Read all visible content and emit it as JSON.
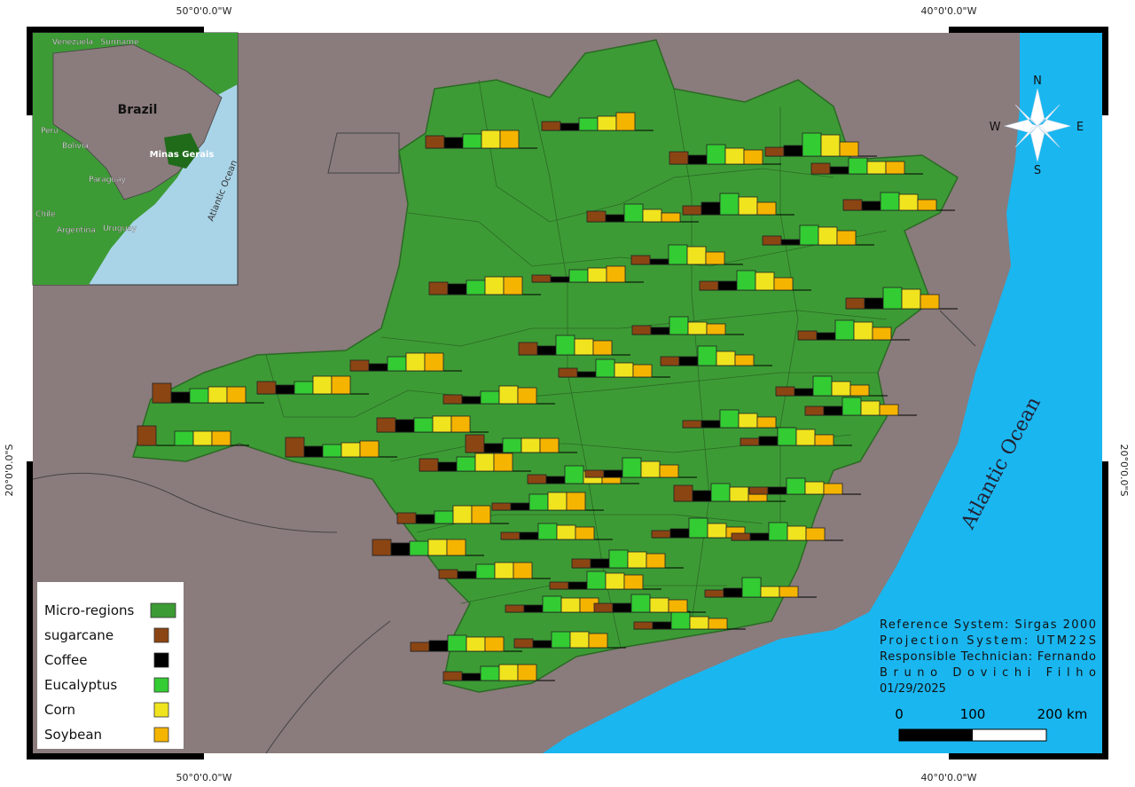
{
  "graticule": {
    "lon_labels": [
      "50°0'0.0\"W",
      "40°0'0.0\"W"
    ],
    "lat_labels": [
      "20°0'0.0\"S"
    ]
  },
  "inset": {
    "labels": [
      "Venezuela",
      "Suriname",
      "Brazil",
      "Peru",
      "Bolivia",
      "Minas Gerais",
      "Paraguay",
      "Chile",
      "Argentina",
      "Uruguay",
      "Atlantic Ocean"
    ]
  },
  "ocean_label": "Atlantic Ocean",
  "compass": {
    "n": "N",
    "s": "S",
    "e": "E",
    "w": "W"
  },
  "legend": {
    "items": [
      {
        "name": "Micro-regions",
        "color": "#3d9b35"
      },
      {
        "name": "sugarcane",
        "color": "#8b4513"
      },
      {
        "name": "Coffee",
        "color": "#000000"
      },
      {
        "name": "Eucalyptus",
        "color": "#33cc33"
      },
      {
        "name": "Corn",
        "color": "#f0e41e"
      },
      {
        "name": "Soybean",
        "color": "#f5b400"
      }
    ]
  },
  "info": [
    "Reference System: Sirgas 2000",
    "Projection System: UTM22S",
    "Responsible Technician: Fernando",
    "Bruno Dovichi Filho",
    "01/29/2025"
  ],
  "scale_bar": {
    "labels": [
      "0",
      "100",
      "200 km"
    ]
  },
  "bar_groups": [
    [
      14,
      12,
      16,
      20,
      20
    ],
    [
      10,
      8,
      14,
      16,
      20
    ],
    [
      14,
      10,
      22,
      18,
      16
    ],
    [
      10,
      12,
      26,
      24,
      16
    ],
    [
      12,
      8,
      18,
      14,
      14
    ],
    [
      12,
      10,
      20,
      18,
      12
    ],
    [
      12,
      8,
      20,
      14,
      10
    ],
    [
      10,
      14,
      24,
      20,
      14
    ],
    [
      10,
      6,
      22,
      20,
      16
    ],
    [
      10,
      6,
      22,
      20,
      14
    ],
    [
      8,
      6,
      14,
      16,
      18
    ],
    [
      14,
      12,
      16,
      20,
      20
    ],
    [
      10,
      10,
      22,
      20,
      14
    ],
    [
      12,
      12,
      24,
      22,
      16
    ],
    [
      10,
      8,
      20,
      14,
      12
    ],
    [
      14,
      10,
      22,
      18,
      16
    ],
    [
      12,
      8,
      16,
      20,
      20
    ],
    [
      14,
      10,
      14,
      20,
      20
    ],
    [
      22,
      12,
      16,
      18,
      18
    ],
    [
      22,
      0,
      16,
      16,
      16
    ],
    [
      22,
      12,
      14,
      16,
      18
    ],
    [
      16,
      14,
      16,
      18,
      18
    ],
    [
      10,
      8,
      14,
      20,
      18
    ],
    [
      20,
      10,
      16,
      16,
      16
    ],
    [
      14,
      10,
      16,
      20,
      20
    ],
    [
      10,
      6,
      20,
      16,
      14
    ],
    [
      10,
      10,
      22,
      16,
      12
    ],
    [
      10,
      8,
      22,
      20,
      14
    ],
    [
      10,
      8,
      22,
      16,
      12
    ],
    [
      10,
      10,
      20,
      16,
      12
    ],
    [
      8,
      8,
      20,
      16,
      12
    ],
    [
      8,
      10,
      20,
      18,
      12
    ],
    [
      10,
      8,
      20,
      14,
      14
    ],
    [
      18,
      12,
      20,
      16,
      12
    ],
    [
      8,
      8,
      18,
      14,
      12
    ],
    [
      12,
      10,
      14,
      20,
      20
    ],
    [
      8,
      8,
      18,
      20,
      20
    ],
    [
      18,
      14,
      16,
      18,
      18
    ],
    [
      8,
      8,
      22,
      18,
      14
    ],
    [
      8,
      8,
      18,
      16,
      14
    ],
    [
      8,
      10,
      22,
      16,
      12
    ],
    [
      8,
      8,
      20,
      16,
      14
    ],
    [
      10,
      8,
      16,
      18,
      18
    ],
    [
      10,
      10,
      20,
      18,
      16
    ],
    [
      8,
      10,
      22,
      12,
      12
    ],
    [
      8,
      8,
      20,
      18,
      16
    ],
    [
      8,
      8,
      18,
      16,
      16
    ],
    [
      8,
      8,
      20,
      14,
      12
    ],
    [
      10,
      12,
      18,
      16,
      16
    ],
    [
      10,
      8,
      16,
      18,
      18
    ],
    [
      10,
      8,
      18,
      18,
      16
    ],
    [
      10,
      10,
      20,
      16,
      14
    ]
  ]
}
